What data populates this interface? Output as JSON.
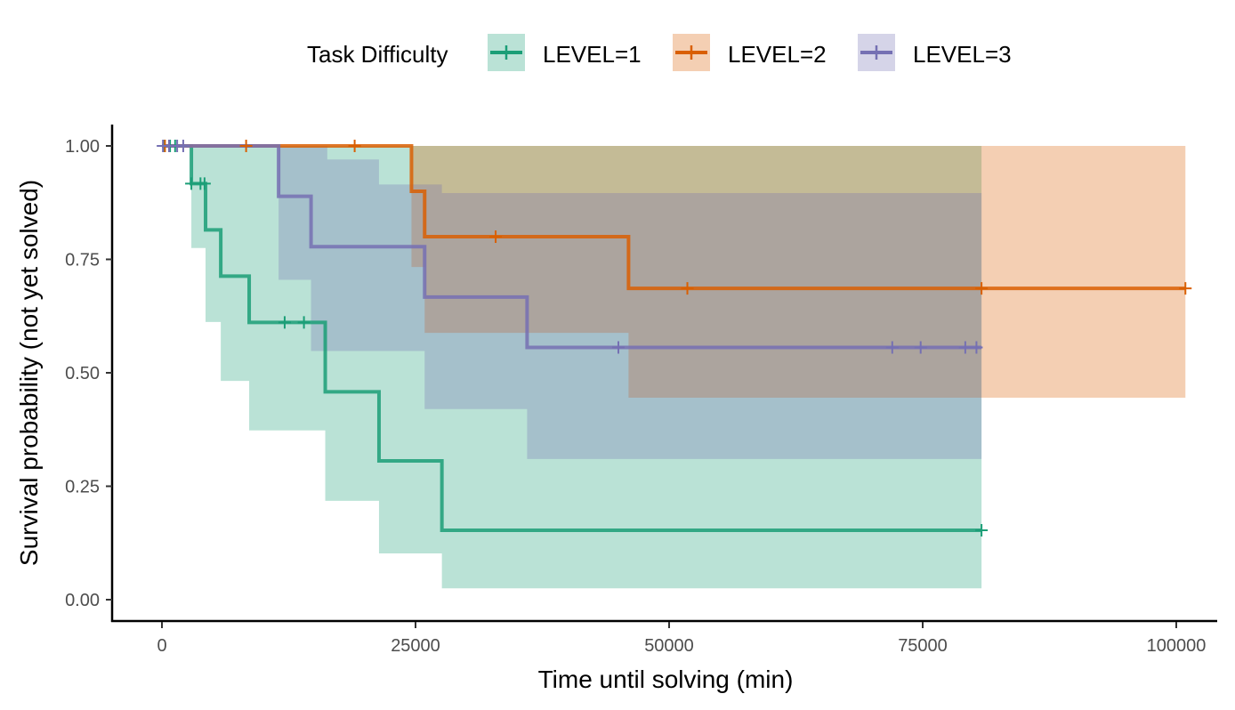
{
  "chart_data": {
    "type": "line",
    "subtype": "kaplan-meier step survival curves with confidence bands",
    "xlabel": "Time until solving (min)",
    "ylabel": "Survival probability (not yet solved)",
    "xlim": [
      -5000,
      104500
    ],
    "ylim": [
      -0.045,
      1.045
    ],
    "x_ticks": [
      0,
      25000,
      50000,
      75000,
      100000
    ],
    "x_tick_labels": [
      "0",
      "25000",
      "50000",
      "75000",
      "100000"
    ],
    "y_ticks": [
      0,
      0.25,
      0.5,
      0.75,
      1
    ],
    "y_tick_labels": [
      "0.00",
      "0.25",
      "0.50",
      "0.75",
      "1.00"
    ],
    "grid": false,
    "legend": {
      "title": "Task Difficulty",
      "position": "top"
    },
    "series": [
      {
        "name": "LEVEL=1",
        "color": "#1b9e77",
        "steps": [
          [
            0,
            1
          ],
          [
            2900,
            0.917
          ],
          [
            4300,
            0.815
          ],
          [
            5800,
            0.713
          ],
          [
            8600,
            0.611
          ],
          [
            16100,
            0.458
          ],
          [
            21400,
            0.306
          ],
          [
            27600,
            0.153
          ]
        ],
        "end_x": 80800,
        "band_lower": [
          0.775,
          0.612,
          0.482,
          0.373,
          0.218,
          0.102,
          0.025
        ],
        "band_upper": [
          1,
          1,
          1,
          1,
          1,
          1,
          1
        ],
        "censor_points": [
          [
            200,
            1
          ],
          [
            800,
            1
          ],
          [
            1300,
            1
          ],
          [
            2900,
            0.917
          ],
          [
            3800,
            0.917
          ],
          [
            4200,
            0.917
          ],
          [
            12100,
            0.611
          ],
          [
            14000,
            0.611
          ],
          [
            80800,
            0.153
          ]
        ]
      },
      {
        "name": "LEVEL=2",
        "color": "#d95f02",
        "steps": [
          [
            0,
            1
          ],
          [
            24600,
            0.9
          ],
          [
            25900,
            0.8
          ],
          [
            46000,
            0.686
          ]
        ],
        "end_x": 100900,
        "band_lower": [
          0.733,
          0.588,
          0.445
        ],
        "band_upper": [
          1,
          1,
          1
        ],
        "censor_points": [
          [
            300,
            1
          ],
          [
            8300,
            1
          ],
          [
            19000,
            1
          ],
          [
            32900,
            0.8
          ],
          [
            51800,
            0.686
          ],
          [
            80800,
            0.686
          ],
          [
            100900,
            0.686
          ]
        ]
      },
      {
        "name": "LEVEL=3",
        "color": "#7570b3",
        "steps": [
          [
            0,
            1
          ],
          [
            11500,
            0.889
          ],
          [
            14700,
            0.778
          ],
          [
            25900,
            0.667
          ],
          [
            36000,
            0.556
          ]
        ],
        "end_x": 80800,
        "band_lower": [
          0.705,
          0.548,
          0.42,
          0.31
        ],
        "band_upper": [
          1,
          0.97,
          0.915,
          0.896
        ],
        "band_upper_steps": [
          [
            0,
            1
          ],
          [
            16300,
            0.97
          ],
          [
            21400,
            0.915
          ],
          [
            27600,
            0.896
          ]
        ],
        "censor_points": [
          [
            100,
            1
          ],
          [
            700,
            1
          ],
          [
            1500,
            1
          ],
          [
            2100,
            1
          ],
          [
            45000,
            0.556
          ],
          [
            72000,
            0.556
          ],
          [
            74800,
            0.556
          ],
          [
            79200,
            0.556
          ],
          [
            80300,
            0.556
          ]
        ]
      }
    ]
  }
}
